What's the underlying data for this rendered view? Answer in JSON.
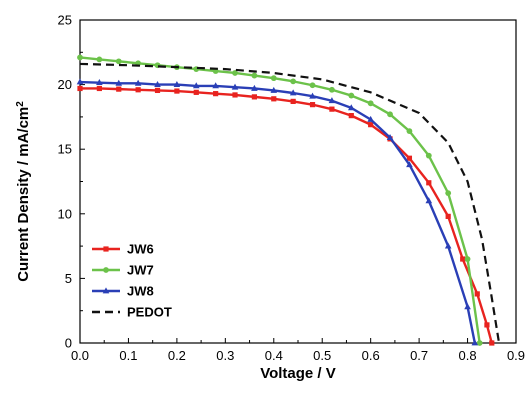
{
  "chart_data": {
    "type": "line",
    "title": "",
    "xlabel": "Voltage / V",
    "ylabel": "Current Density / mA/cm",
    "ylabel_superscript": "2",
    "xlim": [
      0.0,
      0.9
    ],
    "ylim": [
      0,
      25
    ],
    "x_ticks": [
      "0.0",
      "0.1",
      "0.2",
      "0.3",
      "0.4",
      "0.5",
      "0.6",
      "0.7",
      "0.8",
      "0.9"
    ],
    "y_ticks": [
      "0",
      "5",
      "10",
      "15",
      "20",
      "25"
    ],
    "grid": false,
    "legend_position": "bottom-left",
    "series": [
      {
        "name": "JW6",
        "color": "#e8231f",
        "marker": "square",
        "dash": "solid",
        "points": [
          [
            0.0,
            19.7
          ],
          [
            0.04,
            19.7
          ],
          [
            0.08,
            19.65
          ],
          [
            0.12,
            19.6
          ],
          [
            0.16,
            19.55
          ],
          [
            0.2,
            19.5
          ],
          [
            0.24,
            19.4
          ],
          [
            0.28,
            19.3
          ],
          [
            0.32,
            19.2
          ],
          [
            0.36,
            19.05
          ],
          [
            0.4,
            18.9
          ],
          [
            0.44,
            18.7
          ],
          [
            0.48,
            18.45
          ],
          [
            0.52,
            18.1
          ],
          [
            0.56,
            17.6
          ],
          [
            0.6,
            16.9
          ],
          [
            0.64,
            15.8
          ],
          [
            0.68,
            14.3
          ],
          [
            0.72,
            12.4
          ],
          [
            0.76,
            9.8
          ],
          [
            0.79,
            6.5
          ],
          [
            0.82,
            3.8
          ],
          [
            0.84,
            1.4
          ],
          [
            0.85,
            0.0
          ]
        ]
      },
      {
        "name": "JW7",
        "color": "#6cc24a",
        "marker": "circle",
        "dash": "solid",
        "points": [
          [
            0.0,
            22.1
          ],
          [
            0.04,
            21.95
          ],
          [
            0.08,
            21.8
          ],
          [
            0.12,
            21.65
          ],
          [
            0.16,
            21.5
          ],
          [
            0.2,
            21.35
          ],
          [
            0.24,
            21.2
          ],
          [
            0.28,
            21.05
          ],
          [
            0.32,
            20.9
          ],
          [
            0.36,
            20.7
          ],
          [
            0.4,
            20.5
          ],
          [
            0.44,
            20.25
          ],
          [
            0.48,
            19.95
          ],
          [
            0.52,
            19.6
          ],
          [
            0.56,
            19.15
          ],
          [
            0.6,
            18.55
          ],
          [
            0.64,
            17.7
          ],
          [
            0.68,
            16.4
          ],
          [
            0.72,
            14.5
          ],
          [
            0.76,
            11.6
          ],
          [
            0.8,
            6.5
          ],
          [
            0.825,
            0.0
          ]
        ]
      },
      {
        "name": "JW8",
        "color": "#2a3fb6",
        "marker": "triangle",
        "dash": "solid",
        "points": [
          [
            0.0,
            20.2
          ],
          [
            0.04,
            20.15
          ],
          [
            0.08,
            20.1
          ],
          [
            0.12,
            20.1
          ],
          [
            0.16,
            20.0
          ],
          [
            0.2,
            20.0
          ],
          [
            0.24,
            19.9
          ],
          [
            0.28,
            19.9
          ],
          [
            0.32,
            19.8
          ],
          [
            0.36,
            19.7
          ],
          [
            0.4,
            19.55
          ],
          [
            0.44,
            19.35
          ],
          [
            0.48,
            19.1
          ],
          [
            0.52,
            18.75
          ],
          [
            0.56,
            18.2
          ],
          [
            0.6,
            17.3
          ],
          [
            0.64,
            15.9
          ],
          [
            0.68,
            13.8
          ],
          [
            0.72,
            11.0
          ],
          [
            0.76,
            7.5
          ],
          [
            0.8,
            2.8
          ],
          [
            0.815,
            0.0
          ]
        ]
      },
      {
        "name": "PEDOT",
        "color": "#111111",
        "marker": "none",
        "dash": "dashed",
        "points": [
          [
            0.0,
            21.6
          ],
          [
            0.1,
            21.5
          ],
          [
            0.2,
            21.35
          ],
          [
            0.3,
            21.2
          ],
          [
            0.4,
            20.9
          ],
          [
            0.5,
            20.4
          ],
          [
            0.6,
            19.4
          ],
          [
            0.7,
            17.8
          ],
          [
            0.76,
            15.5
          ],
          [
            0.8,
            12.5
          ],
          [
            0.83,
            8.0
          ],
          [
            0.85,
            3.5
          ],
          [
            0.865,
            0.0
          ]
        ]
      }
    ]
  }
}
